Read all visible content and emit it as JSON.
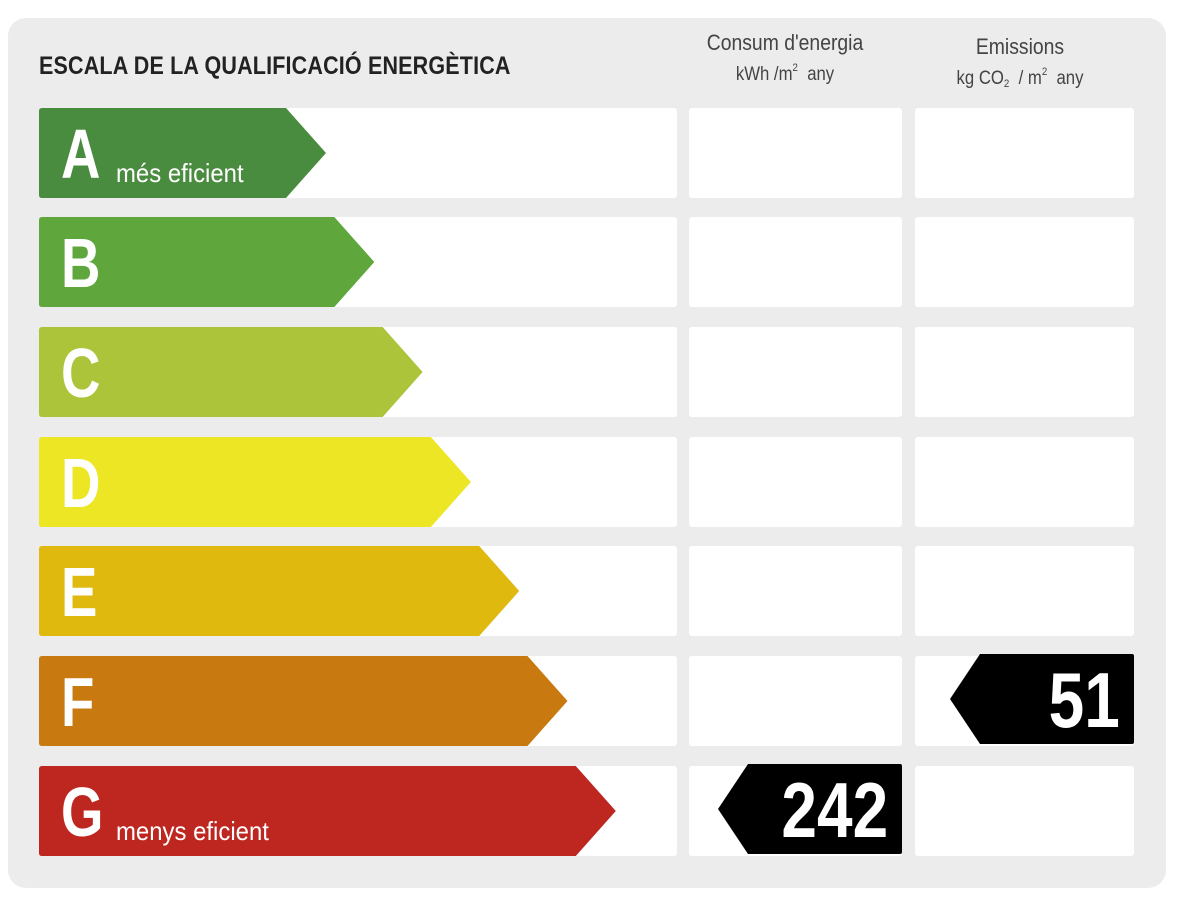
{
  "title": "ESCALA DE LA QUALIFICACIÓ ENERGÈTICA",
  "columns": {
    "consum": {
      "label": "Consum d'energia",
      "unit_pre": "kWh /m",
      "unit_sup": "2",
      "unit_post": "any"
    },
    "emissions": {
      "label": "Emissions",
      "unit_pre": "kg CO",
      "unit_sub": "2",
      "unit_mid": " / m",
      "unit_sup": "2",
      "unit_post": "any"
    }
  },
  "ratings": [
    {
      "letter": "A",
      "desc": "més eficient",
      "color": "#4a8c3f"
    },
    {
      "letter": "B",
      "desc": "",
      "color": "#5fa63d"
    },
    {
      "letter": "C",
      "desc": "",
      "color": "#abc43a"
    },
    {
      "letter": "D",
      "desc": "",
      "color": "#ede625"
    },
    {
      "letter": "E",
      "desc": "",
      "color": "#e0b90e"
    },
    {
      "letter": "F",
      "desc": "",
      "color": "#c8790f"
    },
    {
      "letter": "G",
      "desc": "menys eficient",
      "color": "#be2620"
    }
  ],
  "result": {
    "consum": {
      "value": "242",
      "rating": "G"
    },
    "emissions": {
      "value": "51",
      "rating": "F"
    }
  }
}
